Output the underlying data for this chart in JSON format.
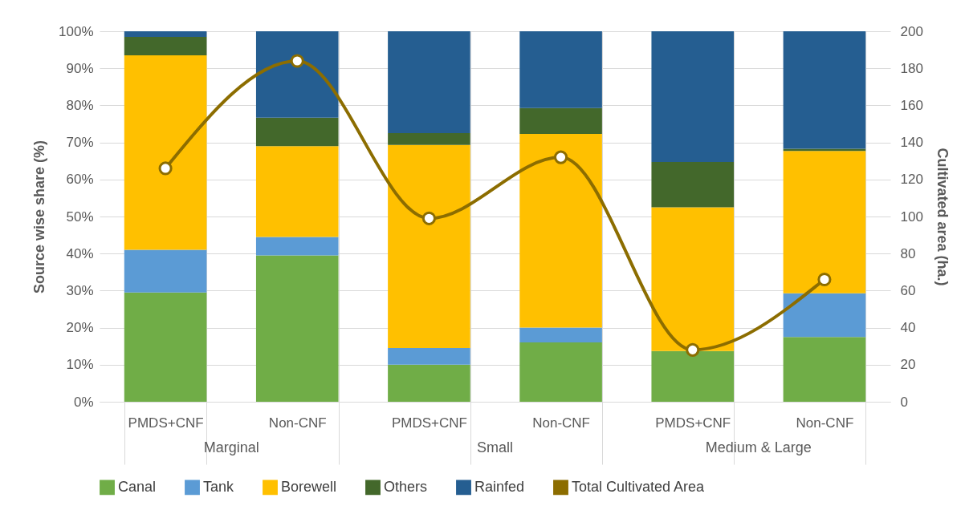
{
  "chart_data": {
    "type": "bar",
    "stacked": true,
    "categories": [
      "PMDS+CNF",
      "Non-CNF",
      "PMDS+CNF",
      "Non-CNF",
      "PMDS+CNF",
      "Non-CNF"
    ],
    "ylabel": "Source wise share (%)",
    "y2label": "Cultivated area (ha.)",
    "ylim": [
      0,
      100
    ],
    "yticks": [
      {
        "value": 0,
        "label": "0%"
      },
      {
        "value": 10,
        "label": "10%"
      },
      {
        "value": 20,
        "label": "20%"
      },
      {
        "value": 30,
        "label": "30%"
      },
      {
        "value": 40,
        "label": "40%"
      },
      {
        "value": 50,
        "label": "50%"
      },
      {
        "value": 60,
        "label": "60%"
      },
      {
        "value": 70,
        "label": "70%"
      },
      {
        "value": 80,
        "label": "80%"
      },
      {
        "value": 90,
        "label": "90%"
      },
      {
        "value": 100,
        "label": "100%"
      }
    ],
    "y2lim": [
      0,
      200
    ],
    "y2ticks": [
      0,
      20,
      40,
      60,
      80,
      100,
      120,
      140,
      160,
      180,
      200
    ],
    "series": [
      {
        "name": "Canal",
        "color": "#70ad47",
        "values": [
          29.5,
          39.5,
          10,
          16,
          13.7,
          17.5
        ]
      },
      {
        "name": "Tank",
        "color": "#5b9bd5",
        "values": [
          11.5,
          5,
          4.5,
          4,
          0,
          11.8
        ]
      },
      {
        "name": "Borewell",
        "color": "#ffc000",
        "values": [
          52.5,
          24.5,
          54.8,
          52.3,
          38.8,
          38.4
        ]
      },
      {
        "name": "Others",
        "color": "#43682b",
        "values": [
          5,
          7.7,
          3.2,
          7,
          12.2,
          0.6
        ]
      },
      {
        "name": "Rainfed",
        "color": "#255e91",
        "values": [
          1.5,
          23.3,
          27.5,
          20.7,
          35.3,
          31.7
        ]
      },
      {
        "name": "Total Cultivated Area",
        "type": "line",
        "axis": "y2",
        "color": "#8c6d00",
        "marker": "circle",
        "values": [
          126,
          184,
          99,
          132,
          28,
          66
        ]
      }
    ],
    "annotations": [
      "Marginal",
      "Small",
      "Medium & Large"
    ],
    "grid": true,
    "legend": "bottom"
  }
}
